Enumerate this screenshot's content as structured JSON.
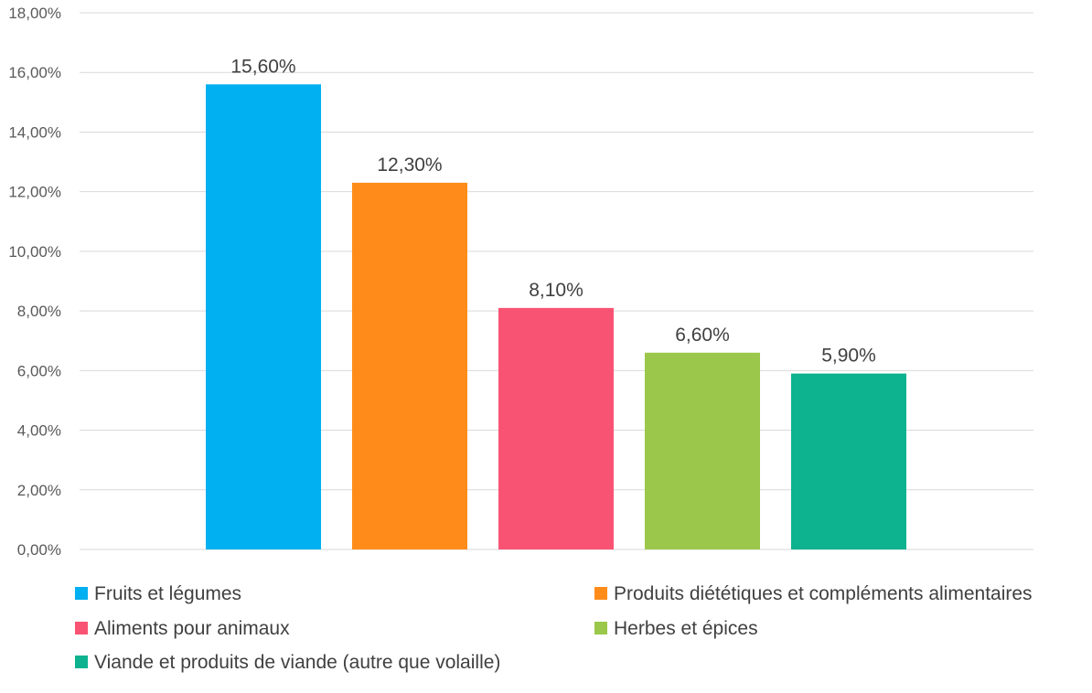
{
  "chart_data": {
    "type": "bar",
    "categories": [
      "Fruits et légumes",
      "Produits diététiques et compléments alimentaires",
      "Aliments pour animaux",
      "Herbes et épices",
      "Viande et produits de viande (autre que volaille)"
    ],
    "values": [
      15.6,
      12.3,
      8.1,
      6.6,
      5.9
    ],
    "data_labels": [
      "15,60%",
      "12,30%",
      "8,10%",
      "6,60%",
      "5,90%"
    ],
    "colors": [
      "#00b0f0",
      "#ff8c1a",
      "#f95374",
      "#9bc84a",
      "#0db28e"
    ],
    "title": "",
    "xlabel": "",
    "ylabel": "",
    "ylim": [
      0,
      18
    ],
    "y_ticks": [
      0,
      2,
      4,
      6,
      8,
      10,
      12,
      14,
      16,
      18
    ],
    "y_tick_labels": [
      "0,00%",
      "2,00%",
      "4,00%",
      "6,00%",
      "8,00%",
      "10,00%",
      "12,00%",
      "14,00%",
      "16,00%",
      "18,00%"
    ],
    "grid": true,
    "legend_position": "bottom",
    "legend": [
      {
        "label": "Fruits et légumes",
        "color": "#00b0f0"
      },
      {
        "label": "Produits diététiques et compléments alimentaires",
        "color": "#ff8c1a"
      },
      {
        "label": "Aliments pour animaux",
        "color": "#f95374"
      },
      {
        "label": "Herbes et épices",
        "color": "#9bc84a"
      },
      {
        "label": "Viande et produits de viande (autre que volaille)",
        "color": "#0db28e"
      }
    ]
  }
}
